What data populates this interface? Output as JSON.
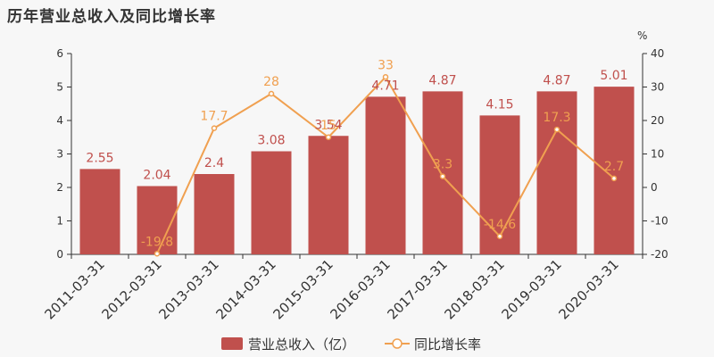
{
  "title": "历年营业总收入及同比增长率",
  "colors": {
    "bar": "#c0504d",
    "line": "#f0a050",
    "axis": "#333333",
    "background": "#f7f7f7"
  },
  "chart_data": {
    "type": "bar",
    "categories": [
      "2011-03-31",
      "2012-03-31",
      "2013-03-31",
      "2014-03-31",
      "2015-03-31",
      "2016-03-31",
      "2017-03-31",
      "2018-03-31",
      "2019-03-31",
      "2020-03-31"
    ],
    "series": [
      {
        "name": "营业总收入（亿）",
        "type": "bar",
        "axis": "left",
        "values": [
          2.55,
          2.04,
          2.4,
          3.08,
          3.54,
          4.71,
          4.87,
          4.15,
          4.87,
          5.01
        ],
        "labels": [
          "2.55",
          "2.04",
          "2.4",
          "3.08",
          "3.54",
          "4.71",
          "4.87",
          "4.15",
          "4.87",
          "5.01"
        ]
      },
      {
        "name": "同比增长率",
        "type": "line",
        "axis": "right",
        "values": [
          null,
          -19.8,
          17.7,
          28,
          15,
          33,
          3.3,
          -14.6,
          17.3,
          2.7
        ],
        "labels": [
          "",
          "-19.8",
          "17.7",
          "28",
          "15",
          "33",
          "3.3",
          "-14.6",
          "17.3",
          "2.7"
        ]
      }
    ],
    "y_left": {
      "range": [
        0,
        6
      ],
      "ticks": [
        "0",
        "1",
        "2",
        "3",
        "4",
        "5",
        "6"
      ]
    },
    "y_right": {
      "range": [
        -20,
        40
      ],
      "ticks": [
        "-20",
        "-10",
        "0",
        "10",
        "20",
        "30",
        "40"
      ],
      "unit": "%"
    },
    "grid": false,
    "legend": "bottom-center"
  }
}
